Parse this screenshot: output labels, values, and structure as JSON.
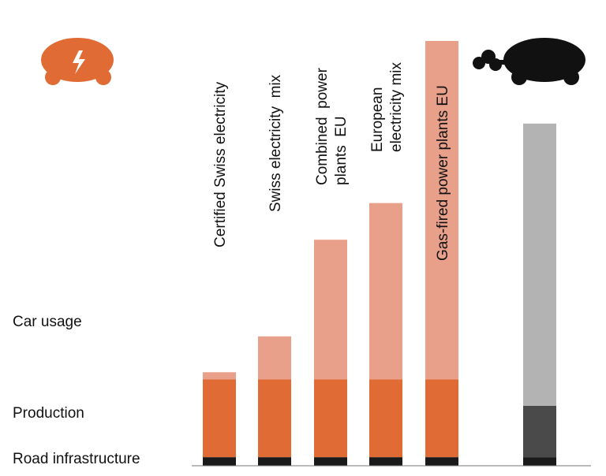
{
  "chart_data": {
    "type": "bar",
    "stacked": true,
    "title": "",
    "xlabel": "",
    "ylabel": "",
    "grid": false,
    "legend": "none",
    "row_labels": [
      "Car usage",
      "Production",
      "Road infrastructure"
    ],
    "categories": [
      {
        "lines": [
          "Certified Swiss electricity"
        ]
      },
      {
        "lines": [
          "Swiss electricity  mix"
        ]
      },
      {
        "lines": [
          "Combined  power",
          "plants  EU"
        ]
      },
      {
        "lines": [
          "European",
          "electricity mix"
        ]
      },
      {
        "lines": [
          "Gas-fired power plants EU"
        ]
      },
      {
        "lines": [
          ""
        ]
      }
    ],
    "series": [
      {
        "key": "road",
        "values": [
          11,
          11,
          11,
          11,
          11,
          11
        ]
      },
      {
        "key": "production",
        "values": [
          100,
          100,
          100,
          100,
          100,
          66
        ]
      },
      {
        "key": "usage",
        "values": [
          9,
          55,
          179,
          226,
          434,
          362
        ]
      }
    ],
    "colors": {
      "road": [
        "#1a1a1a",
        "#1a1a1a",
        "#1a1a1a",
        "#1a1a1a",
        "#1a1a1a",
        "#1a1a1a"
      ],
      "production": [
        "#e16b35",
        "#e16b35",
        "#e16b35",
        "#e16b35",
        "#e16b35",
        "#4a4a4a"
      ],
      "usage": [
        "#e9a08a",
        "#e9a08a",
        "#e9a08a",
        "#e9a08a",
        "#e9a08a",
        "#b3b3b3"
      ],
      "electric_icon": "#e16b35",
      "combustion_icon": "#111111"
    },
    "icons": [
      "electric-car-icon",
      "combustion-car-icon"
    ],
    "ylim": [
      0,
      550
    ]
  }
}
